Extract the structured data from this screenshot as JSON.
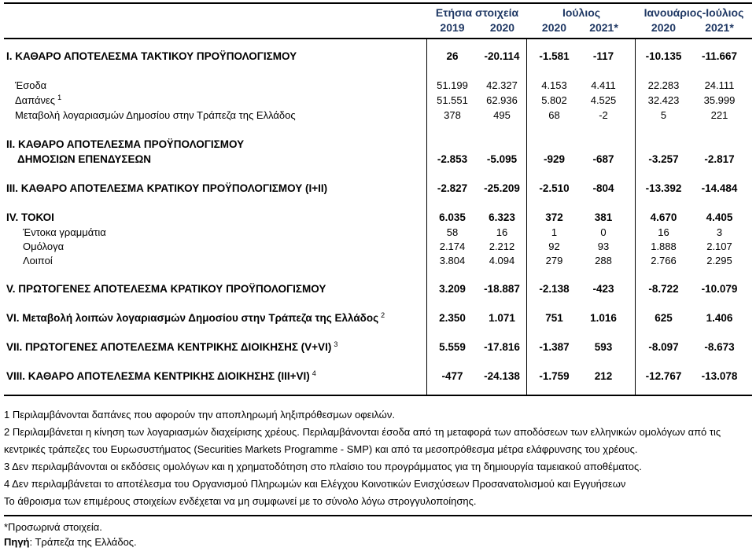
{
  "colors": {
    "header_text": "#1F3864",
    "border": "#000000",
    "background": "#FFFFFF"
  },
  "table": {
    "header": {
      "groups": [
        {
          "label": "Ετήσια στοιχεία",
          "years": [
            "2019",
            "2020"
          ]
        },
        {
          "label": "Ιούλιος",
          "years": [
            "2020",
            "2021*"
          ]
        },
        {
          "label": "Ιανουάριος-Ιούλιος",
          "years": [
            "2020",
            "2021*"
          ]
        }
      ]
    },
    "rows": [
      {
        "type": "section first",
        "label": "Ι. ΚΑΘΑΡΟ ΑΠΟΤΕΛΕΣΜΑ  ΤΑΚΤΙΚΟΥ ΠΡΟΫΠΟΛΟΓΙΣΜΟΥ",
        "values": [
          "26",
          "-20.114",
          "-1.581",
          "-117",
          "-10.135",
          "-11.667"
        ]
      },
      {
        "type": "spacer"
      },
      {
        "type": "sub",
        "label": "Έσοδα",
        "values": [
          "51.199",
          "42.327",
          "4.153",
          "4.411",
          "22.283",
          "24.111"
        ]
      },
      {
        "type": "sub",
        "label": "Δαπάνες",
        "sup": "1",
        "values": [
          "51.551",
          "62.936",
          "5.802",
          "4.525",
          "32.423",
          "35.999"
        ]
      },
      {
        "type": "sub",
        "label": "Μεταβολή λογαριασμών Δημοσίου στην Τράπεζα της Ελλάδος",
        "values": [
          "378",
          "495",
          "68",
          "-2",
          "5",
          "221"
        ]
      },
      {
        "type": "spacer"
      },
      {
        "type": "section2",
        "label": "ΙΙ. ΚΑΘΑΡΟ ΑΠΟΤΕΛΕΣΜΑ ΠΡΟΫΠΟΛΟΓΙΣΜΟΥ",
        "label2": "ΔΗΜΟΣΙΩΝ ΕΠΕΝΔΥΣΕΩΝ",
        "values": [
          "-2.853",
          "-5.095",
          "-929",
          "-687",
          "-3.257",
          "-2.817"
        ]
      },
      {
        "type": "spacer"
      },
      {
        "type": "section",
        "label": "ΙΙΙ. ΚΑΘΑΡΟ ΑΠΟΤΕΛΕΣΜΑ ΚΡΑΤΙΚΟΥ ΠΡΟΫΠΟΛΟΓΙΣΜΟΥ (Ι+ΙΙ)",
        "values": [
          "-2.827",
          "-25.209",
          "-2.510",
          "-804",
          "-13.392",
          "-14.484"
        ]
      },
      {
        "type": "spacer"
      },
      {
        "type": "section",
        "label": "ΙV. ΤΟΚΟΙ",
        "values": [
          "6.035",
          "6.323",
          "372",
          "381",
          "4.670",
          "4.405"
        ]
      },
      {
        "type": "sub2",
        "label": "Έντοκα γραμμάτια",
        "values": [
          "58",
          "16",
          "1",
          "0",
          "16",
          "3"
        ]
      },
      {
        "type": "sub2",
        "label": "Ομόλογα",
        "values": [
          "2.174",
          "2.212",
          "92",
          "93",
          "1.888",
          "2.107"
        ]
      },
      {
        "type": "sub2",
        "label": "Λοιποί",
        "values": [
          "3.804",
          "4.094",
          "279",
          "288",
          "2.766",
          "2.295"
        ]
      },
      {
        "type": "spacer"
      },
      {
        "type": "section",
        "label": "V. ΠΡΩΤΟΓΕΝΕΣ ΑΠΟΤΕΛΕΣΜΑ  ΚΡΑΤΙΚΟΥ ΠΡΟΫΠΟΛΟΓΙΣΜΟΥ",
        "values": [
          "3.209",
          "-18.887",
          "-2.138",
          "-423",
          "-8.722",
          "-10.079"
        ]
      },
      {
        "type": "spacer"
      },
      {
        "type": "section",
        "label": "VΙ. Μεταβολή λοιπών λογαριασμών Δημοσίου στην Τράπεζα της Ελλάδος",
        "sup": "2",
        "values": [
          "2.350",
          "1.071",
          "751",
          "1.016",
          "625",
          "1.406"
        ]
      },
      {
        "type": "spacer"
      },
      {
        "type": "section",
        "label": "VΙΙ. ΠΡΩΤΟΓΕΝΕΣ ΑΠΟΤΕΛΕΣΜΑ ΚΕΝΤΡΙΚΗΣ ΔΙΟΙΚΗΣΗΣ (V+VΙ)",
        "sup": "3",
        "values": [
          "5.559",
          "-17.816",
          "-1.387",
          "593",
          "-8.097",
          "-8.673"
        ]
      },
      {
        "type": "spacer"
      },
      {
        "type": "section",
        "label": "VΙΙΙ. ΚΑΘΑΡΟ ΑΠΟΤΕΛΕΣΜΑ ΚΕΝΤΡΙΚΗΣ ΔΙΟΙΚΗΣΗΣ (ΙΙΙ+VΙ)",
        "sup": "4",
        "values": [
          "-477",
          "-24.138",
          "-1.759",
          "212",
          "-12.767",
          "-13.078"
        ]
      },
      {
        "type": "spacer last"
      }
    ]
  },
  "footnotes": [
    "1 Περιλαμβάνονται δαπάνες που αφορούν την αποπληρωμή ληξιπρόθεσμων οφειλών.",
    "2 Περιλαμβάνεται η κίνηση των λογαριασμών διαχείρισης χρέους. Περιλαμβάνονται έσοδα από τη μεταφορά των αποδόσεων των ελληνικών ομολόγων από τις κεντρικές τράπεζες του Ευρωσυστήματος (Securities Markets Programme - SMP) και από τα μεσοπρόθεσμα μέτρα ελάφρυνσης του χρέους.",
    "3 Δεν περιλαμβάνονται οι εκδόσεις ομολόγων και η χρηματοδότηση στο πλαίσιο του προγράμματος για τη δημιουργία ταμειακού αποθέματος.",
    "4 Δεν περιλαμβάνεται το αποτέλεσμα του Οργανισμού Πληρωμών και Ελέγχου Κοινοτικών Ενισχύσεων Προσανατολισμού και Εγγυήσεων",
    "Το άθροισμα των επιμέρους στοιχείων ενδέχεται να μη συμφωνεί με το σύνολο λόγω στρογγυλοποίησης."
  ],
  "footer": {
    "provisional_note": "*Προσωρινά στοιχεία.",
    "source_label": "Πηγή",
    "source_text": ": Τράπεζα της Ελλάδος."
  }
}
